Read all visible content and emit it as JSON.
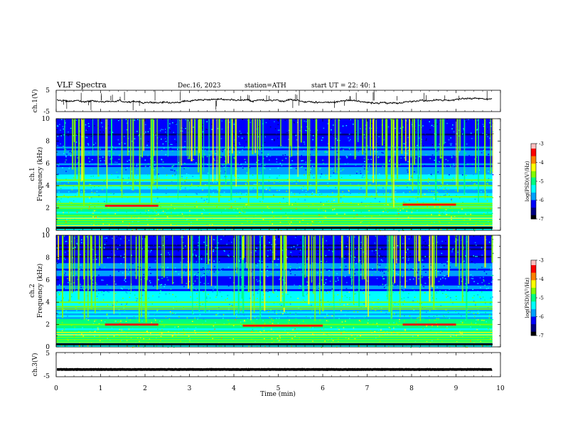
{
  "header": {
    "title": "VLF  Spectra",
    "date": "Dec.16, 2023",
    "station": "station=ATH",
    "start": "start  UT  =   22: 40: 1"
  },
  "chart_data": [
    {
      "type": "line",
      "panel": "ch1-timeseries",
      "ylabel": "ch.1(V)",
      "yticks": [
        "5",
        "-5"
      ],
      "ylim": [
        -5,
        5
      ],
      "xlim": [
        0,
        10
      ],
      "baseline_level": 0.2,
      "data_end_min": 9.82
    },
    {
      "type": "heatmap",
      "panel": "ch1-spectrogram",
      "ylabel": "ch.1\nFrequency  (kHz)",
      "yticks": [
        "0",
        "2",
        "4",
        "6",
        "8",
        "10"
      ],
      "ylim": [
        0,
        10
      ],
      "xlim": [
        0,
        10
      ],
      "colorbar": {
        "label": "log(PSD)(V²/Hz)",
        "ticks": [
          "-3",
          "-4",
          "-5",
          "-6",
          "-7"
        ],
        "range": [
          -7,
          -3
        ]
      },
      "bands_khz": [
        2.0,
        2.2,
        2.4,
        3.0,
        4.0,
        4.5
      ],
      "highlight": [
        {
          "x0": 1.1,
          "x1": 2.3,
          "f": 2.2
        },
        {
          "x0": 7.8,
          "x1": 9.0,
          "f": 2.3
        }
      ]
    },
    {
      "type": "heatmap",
      "panel": "ch2-spectrogram",
      "ylabel": "ch.2\nFrequency  (kHz)",
      "yticks": [
        "0",
        "2",
        "4",
        "6",
        "8",
        "10"
      ],
      "ylim": [
        0,
        10
      ],
      "xlim": [
        0,
        10
      ],
      "colorbar": {
        "label": "log(PSD)(V²/Hz)",
        "ticks": [
          "-3",
          "-4",
          "-5",
          "-6",
          "-7"
        ],
        "range": [
          -7,
          -3
        ]
      },
      "bands_khz": [
        2.0,
        3.4,
        3.6,
        4.0
      ],
      "highlight": [
        {
          "x0": 1.1,
          "x1": 2.3,
          "f": 2.0
        },
        {
          "x0": 4.2,
          "x1": 6.0,
          "f": 1.9
        },
        {
          "x0": 7.8,
          "x1": 9.0,
          "f": 2.0
        }
      ]
    },
    {
      "type": "line",
      "panel": "ch3-timeseries",
      "ylabel": "ch.3(V)",
      "yticks": [
        "5",
        "-5"
      ],
      "ylim": [
        -5,
        5
      ],
      "xlim": [
        0,
        10
      ],
      "baseline_level": -2.0,
      "data_end_min": 9.82
    }
  ],
  "xaxis": {
    "label": "Time  (min)",
    "ticks": [
      "0",
      "1",
      "2",
      "3",
      "4",
      "5",
      "6",
      "7",
      "8",
      "9",
      "10"
    ]
  },
  "colors": {
    "colormap": [
      "#000000",
      "#000080",
      "#0000ff",
      "#00a0ff",
      "#00ffff",
      "#00ff80",
      "#80ff00",
      "#ffff00",
      "#ff8000",
      "#ff0000",
      "#ffc0c0",
      "#ffffff"
    ],
    "trace": "#000000"
  }
}
